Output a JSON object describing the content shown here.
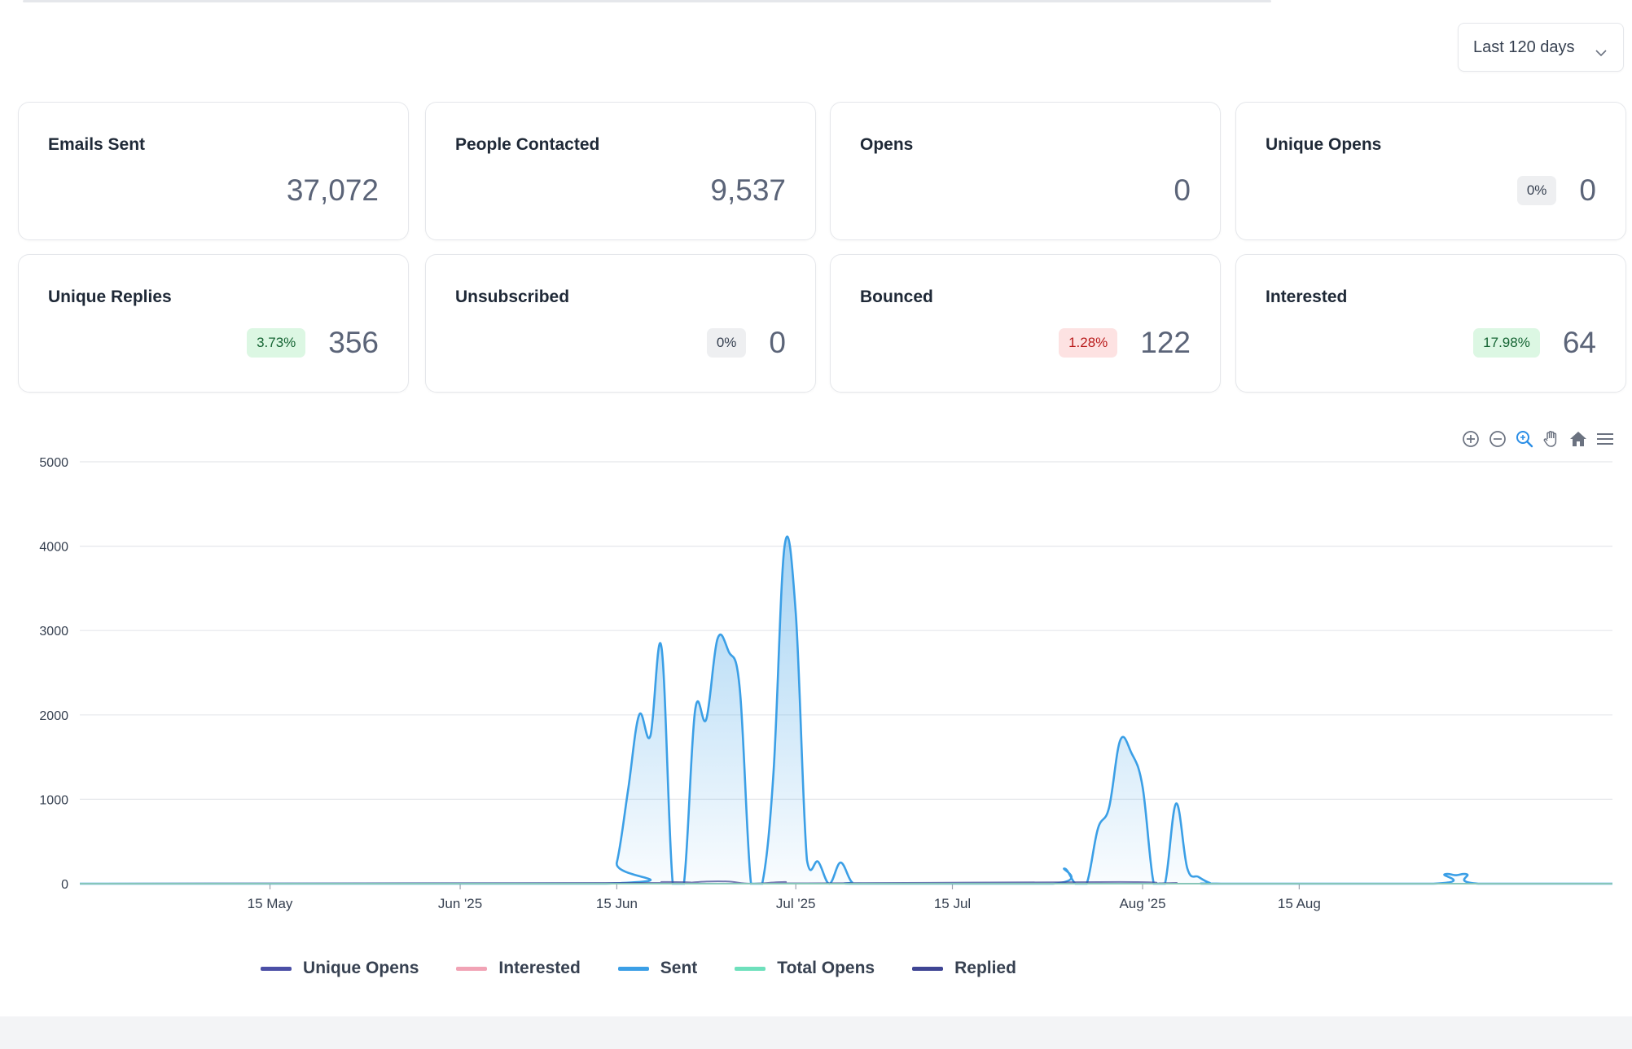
{
  "filter": {
    "range_label": "Last 120 days"
  },
  "stats": [
    {
      "title": "Emails Sent",
      "value": "37,072",
      "badge": "",
      "badge_tone": ""
    },
    {
      "title": "People Contacted",
      "value": "9,537",
      "badge": "",
      "badge_tone": ""
    },
    {
      "title": "Opens",
      "value": "0",
      "badge": "",
      "badge_tone": ""
    },
    {
      "title": "Unique Opens",
      "value": "0",
      "badge": "0%",
      "badge_tone": "grey"
    },
    {
      "title": "Unique Replies",
      "value": "356",
      "badge": "3.73%",
      "badge_tone": "green"
    },
    {
      "title": "Unsubscribed",
      "value": "0",
      "badge": "0%",
      "badge_tone": "grey"
    },
    {
      "title": "Bounced",
      "value": "122",
      "badge": "1.28%",
      "badge_tone": "red"
    },
    {
      "title": "Interested",
      "value": "64",
      "badge": "17.98%",
      "badge_tone": "green"
    }
  ],
  "toolbar": {
    "icons": [
      "zoom-in-icon",
      "zoom-out-icon",
      "zoom-select-icon",
      "pan-hand-icon",
      "home-reset-icon",
      "menu-icon"
    ]
  },
  "colors": {
    "sent": "#3b9fe6",
    "unique_opens": "#4b4fa6",
    "interested": "#f1a3b5",
    "total_opens": "#6ee0bc",
    "replied": "#3f4594",
    "grid": "#e5e7eb"
  },
  "chart_data": {
    "type": "area",
    "title": "",
    "xlabel": "",
    "ylabel": "",
    "ylim": [
      0,
      5000
    ],
    "yticks": [
      0,
      1000,
      2000,
      3000,
      4000,
      5000
    ],
    "xlim": [
      "2025-04-28",
      "2025-09-12"
    ],
    "xticks": [
      {
        "date": "2025-05-15",
        "label": "15 May"
      },
      {
        "date": "2025-06-01",
        "label": "Jun '25"
      },
      {
        "date": "2025-06-15",
        "label": "15 Jun"
      },
      {
        "date": "2025-07-01",
        "label": "Jul '25"
      },
      {
        "date": "2025-07-15",
        "label": "15 Jul"
      },
      {
        "date": "2025-08-01",
        "label": "Aug '25"
      },
      {
        "date": "2025-08-15",
        "label": "15 Aug"
      }
    ],
    "legend": [
      "Unique Opens",
      "Interested",
      "Sent",
      "Total Opens",
      "Replied"
    ],
    "legend_position": "bottom",
    "series": [
      {
        "name": "Sent",
        "points": [
          [
            "2025-04-28",
            0
          ],
          [
            "2025-06-14",
            0
          ],
          [
            "2025-06-15",
            250
          ],
          [
            "2025-06-16",
            1100
          ],
          [
            "2025-06-17",
            2000
          ],
          [
            "2025-06-18",
            1750
          ],
          [
            "2025-06-19",
            2800
          ],
          [
            "2025-06-20",
            0
          ],
          [
            "2025-06-21",
            0
          ],
          [
            "2025-06-22",
            2050
          ],
          [
            "2025-06-23",
            1950
          ],
          [
            "2025-06-24",
            2900
          ],
          [
            "2025-06-25",
            2750
          ],
          [
            "2025-06-26",
            2300
          ],
          [
            "2025-06-27",
            0
          ],
          [
            "2025-06-28",
            0
          ],
          [
            "2025-06-29",
            1300
          ],
          [
            "2025-06-30",
            4000
          ],
          [
            "2025-07-01",
            3200
          ],
          [
            "2025-07-02",
            280
          ],
          [
            "2025-07-03",
            260
          ],
          [
            "2025-07-04",
            0
          ],
          [
            "2025-07-05",
            250
          ],
          [
            "2025-07-06",
            20
          ],
          [
            "2025-07-07",
            0
          ],
          [
            "2025-07-24",
            0
          ],
          [
            "2025-07-25",
            180
          ],
          [
            "2025-07-26",
            0
          ],
          [
            "2025-07-27",
            0
          ],
          [
            "2025-07-28",
            650
          ],
          [
            "2025-07-29",
            900
          ],
          [
            "2025-07-30",
            1700
          ],
          [
            "2025-07-31",
            1550
          ],
          [
            "2025-08-01",
            1150
          ],
          [
            "2025-08-02",
            0
          ],
          [
            "2025-08-03",
            0
          ],
          [
            "2025-08-04",
            950
          ],
          [
            "2025-08-05",
            180
          ],
          [
            "2025-08-06",
            80
          ],
          [
            "2025-08-07",
            10
          ],
          [
            "2025-08-08",
            0
          ],
          [
            "2025-08-27",
            0
          ],
          [
            "2025-08-28",
            110
          ],
          [
            "2025-08-29",
            100
          ],
          [
            "2025-08-30",
            110
          ],
          [
            "2025-08-31",
            0
          ],
          [
            "2025-09-12",
            0
          ]
        ]
      },
      {
        "name": "Replied",
        "points": [
          [
            "2025-04-28",
            0
          ],
          [
            "2025-06-17",
            10
          ],
          [
            "2025-06-19",
            20
          ],
          [
            "2025-06-20",
            0
          ],
          [
            "2025-06-23",
            25
          ],
          [
            "2025-06-25",
            25
          ],
          [
            "2025-06-27",
            0
          ],
          [
            "2025-06-30",
            20
          ],
          [
            "2025-07-02",
            5
          ],
          [
            "2025-07-30",
            20
          ],
          [
            "2025-08-02",
            0
          ],
          [
            "2025-08-04",
            10
          ],
          [
            "2025-08-06",
            0
          ],
          [
            "2025-09-12",
            0
          ]
        ]
      },
      {
        "name": "Unique Opens",
        "points": [
          [
            "2025-04-28",
            0
          ],
          [
            "2025-09-12",
            0
          ]
        ]
      },
      {
        "name": "Interested",
        "points": [
          [
            "2025-04-28",
            0
          ],
          [
            "2025-09-12",
            0
          ]
        ]
      },
      {
        "name": "Total Opens",
        "points": [
          [
            "2025-04-28",
            0
          ],
          [
            "2025-09-12",
            0
          ]
        ]
      }
    ]
  }
}
